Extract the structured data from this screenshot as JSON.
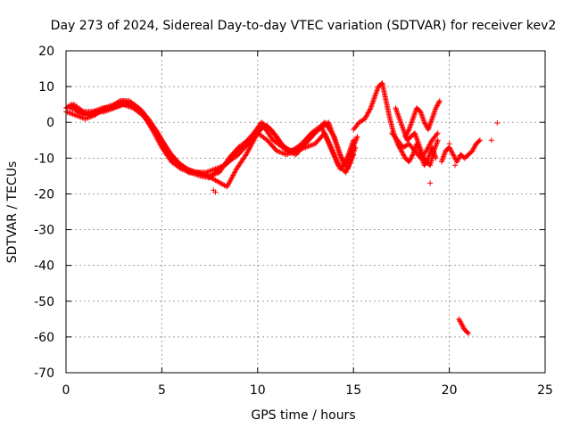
{
  "chart_data": {
    "type": "scatter",
    "title": "Day 273 of 2024, Sidereal Day-to-day VTEC variation (SDTVAR) for receiver kev2",
    "xlabel": "GPS time / hours",
    "ylabel": "SDTVAR / TECUs",
    "xlim": [
      0,
      25
    ],
    "ylim": [
      -70,
      20
    ],
    "xticks": [
      0,
      5,
      10,
      15,
      20,
      25
    ],
    "yticks": [
      -70,
      -60,
      -50,
      -40,
      -30,
      -20,
      -10,
      0,
      10,
      20
    ],
    "grid": true,
    "marker": "plus",
    "series": [
      {
        "name": "SDTVAR",
        "color": "#ff0000",
        "tracks": [
          [
            [
              0,
              4
            ],
            [
              0.3,
              5
            ],
            [
              0.6,
              3
            ],
            [
              1,
              2
            ],
            [
              1.5,
              3
            ],
            [
              2,
              3
            ],
            [
              2.5,
              4
            ],
            [
              3,
              5
            ],
            [
              3.5,
              4
            ],
            [
              4,
              2
            ],
            [
              4.5,
              -1
            ],
            [
              5,
              -5
            ],
            [
              5.5,
              -9
            ],
            [
              6,
              -12
            ],
            [
              6.5,
              -13.5
            ],
            [
              7,
              -14.5
            ],
            [
              7.5,
              -15
            ],
            [
              8,
              -14
            ],
            [
              8.5,
              -10
            ],
            [
              9,
              -7
            ],
            [
              9.5,
              -5
            ],
            [
              10,
              -3
            ],
            [
              10.5,
              -5
            ],
            [
              11,
              -8
            ],
            [
              11.5,
              -9
            ],
            [
              12,
              -8
            ],
            [
              12.5,
              -7
            ],
            [
              13,
              -6
            ],
            [
              13.5,
              -3
            ],
            [
              14,
              -9
            ],
            [
              14.3,
              -13
            ],
            [
              14.6,
              -11
            ],
            [
              15,
              -5
            ]
          ],
          [
            [
              0,
              3
            ],
            [
              0.5,
              2
            ],
            [
              1,
              1
            ],
            [
              1.5,
              2
            ],
            [
              2,
              4
            ],
            [
              2.5,
              5
            ],
            [
              3,
              6
            ],
            [
              3.5,
              5
            ],
            [
              4,
              3
            ],
            [
              4.5,
              -2
            ],
            [
              5,
              -7
            ],
            [
              5.5,
              -11
            ],
            [
              6,
              -13
            ],
            [
              6.5,
              -14
            ],
            [
              7,
              -15
            ],
            [
              7.5,
              -15.5
            ],
            [
              8,
              -13
            ],
            [
              8.5,
              -11
            ],
            [
              9,
              -9
            ],
            [
              9.5,
              -6
            ],
            [
              10,
              -2
            ],
            [
              10.5,
              -1
            ],
            [
              11,
              -4
            ],
            [
              11.5,
              -8
            ],
            [
              12,
              -9
            ],
            [
              12.5,
              -6
            ],
            [
              13,
              -3
            ],
            [
              13.5,
              0
            ],
            [
              14,
              -4
            ],
            [
              14.3,
              -9
            ],
            [
              14.7,
              -13
            ],
            [
              15,
              -9
            ]
          ],
          [
            [
              0.2,
              4
            ],
            [
              0.8,
              3
            ],
            [
              1.3,
              2
            ],
            [
              1.8,
              3
            ],
            [
              2.3,
              4
            ],
            [
              2.8,
              6
            ],
            [
              3.3,
              6
            ],
            [
              3.8,
              4
            ],
            [
              4.3,
              1
            ],
            [
              4.8,
              -3
            ],
            [
              5.3,
              -8
            ],
            [
              5.8,
              -11
            ],
            [
              6.3,
              -13
            ],
            [
              6.8,
              -14
            ],
            [
              7.3,
              -14
            ],
            [
              7.8,
              -13
            ],
            [
              8.3,
              -12
            ],
            [
              8.8,
              -9
            ],
            [
              9.3,
              -6
            ],
            [
              9.8,
              -3
            ],
            [
              10.2,
              0
            ],
            [
              10.7,
              -2
            ],
            [
              11.2,
              -6
            ],
            [
              11.7,
              -8
            ],
            [
              12.2,
              -7
            ],
            [
              12.7,
              -4
            ],
            [
              13.2,
              -2
            ],
            [
              13.7,
              0
            ],
            [
              14.1,
              -6
            ],
            [
              14.5,
              -12
            ],
            [
              14.9,
              -8
            ],
            [
              15.2,
              -4
            ]
          ],
          [
            [
              0.4,
              5
            ],
            [
              0.9,
              3
            ],
            [
              1.4,
              3
            ],
            [
              1.9,
              4
            ],
            [
              2.4,
              4
            ],
            [
              2.9,
              5
            ],
            [
              3.4,
              5
            ],
            [
              3.9,
              3
            ],
            [
              4.4,
              -1
            ],
            [
              4.9,
              -5
            ],
            [
              5.4,
              -10
            ],
            [
              5.9,
              -12
            ],
            [
              6.4,
              -14
            ],
            [
              6.9,
              -14
            ],
            [
              7.4,
              -15
            ],
            [
              8.4,
              -18
            ],
            [
              8.9,
              -13
            ],
            [
              9.4,
              -9
            ],
            [
              9.9,
              -4
            ],
            [
              10.3,
              -1
            ],
            [
              10.8,
              -5
            ],
            [
              11.3,
              -7
            ],
            [
              11.8,
              -8
            ],
            [
              12.3,
              -6
            ],
            [
              12.8,
              -3
            ],
            [
              13.3,
              -1
            ],
            [
              13.8,
              -7
            ],
            [
              14.2,
              -12
            ],
            [
              14.6,
              -14
            ],
            [
              15.1,
              -7
            ]
          ],
          [
            [
              15,
              -2
            ],
            [
              15.3,
              0
            ],
            [
              15.6,
              1
            ],
            [
              15.9,
              4
            ],
            [
              16.1,
              7
            ],
            [
              16.3,
              10
            ],
            [
              16.5,
              11
            ],
            [
              16.7,
              6
            ],
            [
              16.9,
              1
            ],
            [
              17.1,
              -3
            ],
            [
              17.3,
              -6
            ],
            [
              17.5,
              -8
            ],
            [
              17.7,
              -10
            ],
            [
              17.9,
              -11
            ],
            [
              18.1,
              -9
            ],
            [
              18.3,
              -6
            ],
            [
              18.5,
              -9
            ],
            [
              18.7,
              -12
            ],
            [
              18.9,
              -10
            ],
            [
              19.1,
              -7
            ],
            [
              19.3,
              -10
            ]
          ],
          [
            [
              17.2,
              4
            ],
            [
              17.4,
              1
            ],
            [
              17.6,
              -2
            ],
            [
              17.8,
              -5
            ],
            [
              18,
              -4
            ],
            [
              18.2,
              -3
            ],
            [
              18.4,
              -6
            ],
            [
              18.6,
              -9
            ],
            [
              18.8,
              -11
            ],
            [
              19,
              -12
            ],
            [
              19.2,
              -8
            ],
            [
              19.4,
              -5
            ]
          ],
          [
            [
              17.7,
              -4
            ],
            [
              17.9,
              -2
            ],
            [
              18.1,
              1
            ],
            [
              18.3,
              4
            ],
            [
              18.5,
              3
            ],
            [
              18.7,
              0
            ],
            [
              18.9,
              -2
            ],
            [
              19.1,
              1
            ],
            [
              19.3,
              4
            ],
            [
              19.5,
              6
            ]
          ],
          [
            [
              17.0,
              -3
            ],
            [
              17.3,
              -5
            ],
            [
              17.6,
              -7
            ],
            [
              17.9,
              -6
            ],
            [
              18.2,
              -8
            ],
            [
              18.5,
              -10
            ],
            [
              18.8,
              -8
            ],
            [
              19.1,
              -5
            ],
            [
              19.4,
              -3
            ]
          ],
          [
            [
              19.6,
              -11
            ],
            [
              19.8,
              -8
            ],
            [
              20,
              -7
            ],
            [
              20.2,
              -9
            ],
            [
              20.4,
              -11
            ],
            [
              20.6,
              -9
            ],
            [
              20.8,
              -10
            ],
            [
              21,
              -9
            ],
            [
              21.2,
              -8
            ],
            [
              21.4,
              -6
            ],
            [
              21.6,
              -5
            ]
          ],
          [
            [
              20.5,
              -55
            ],
            [
              20.6,
              -56
            ],
            [
              20.7,
              -57
            ],
            [
              20.8,
              -58
            ],
            [
              20.9,
              -58.5
            ],
            [
              21,
              -59
            ]
          ]
        ],
        "isolated": [
          [
            7.7,
            -19
          ],
          [
            7.8,
            -19.5
          ],
          [
            19,
            -17
          ],
          [
            20,
            -6
          ],
          [
            20.3,
            -12
          ],
          [
            22.2,
            -5
          ],
          [
            22.5,
            -0.2
          ]
        ]
      }
    ]
  }
}
